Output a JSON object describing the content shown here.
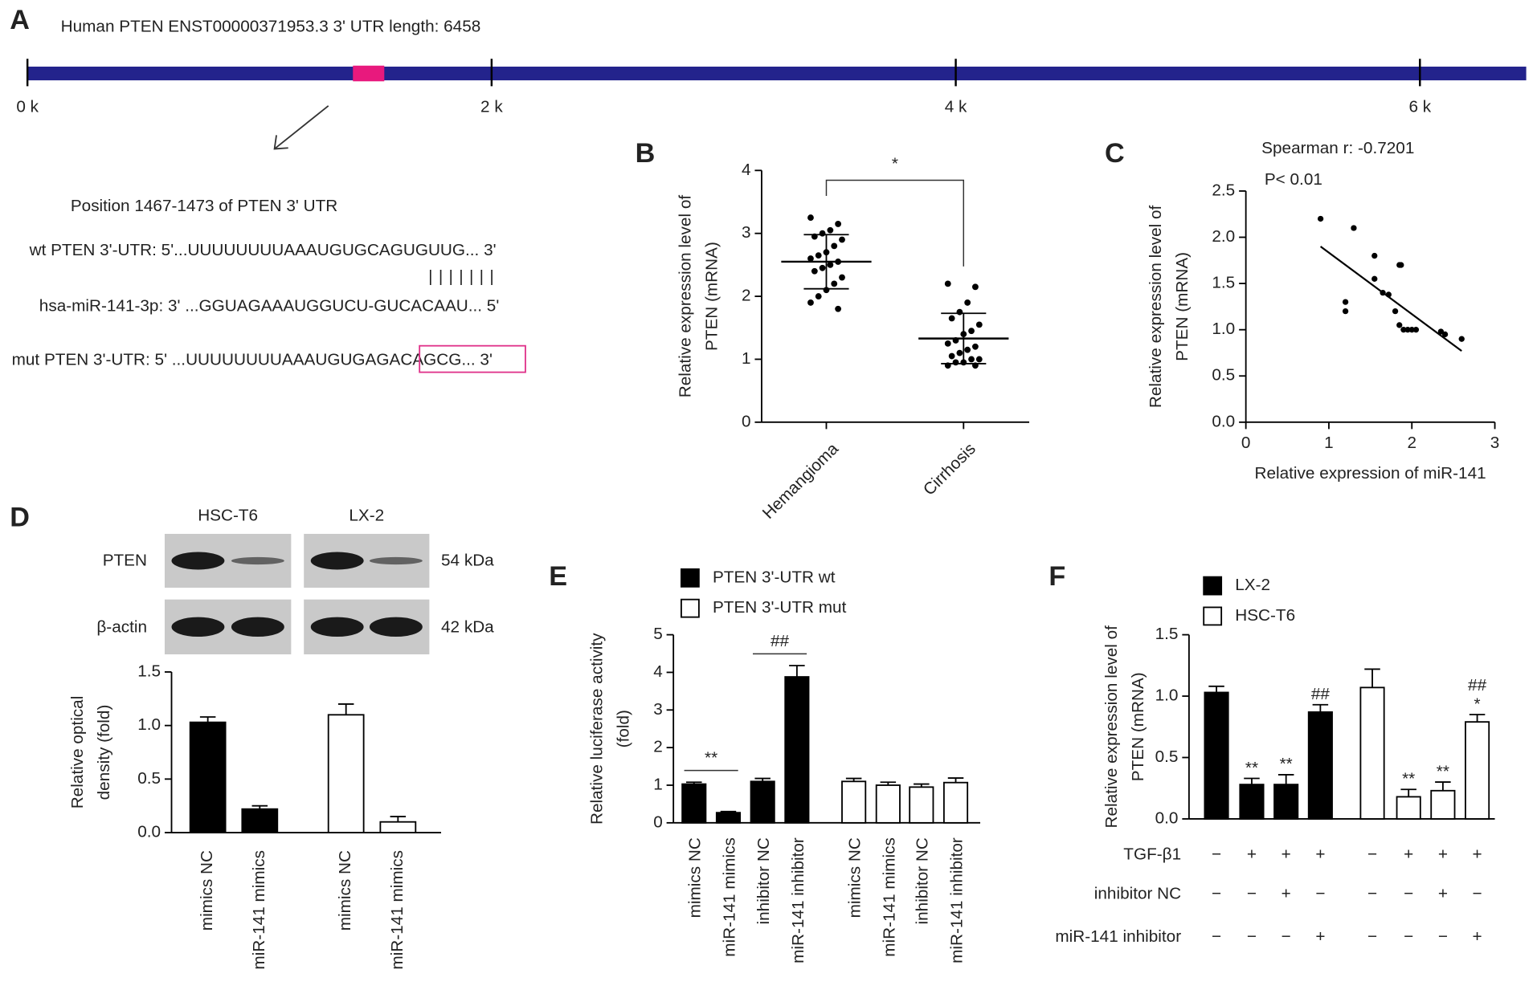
{
  "diagram": {
    "panel": "A",
    "header": "Human PTEN  ENST00000371953.3   3' UTR length: 6458",
    "xlim": [
      0,
      6458
    ],
    "xticks": [
      {
        "value": 0,
        "label": "0 k"
      },
      {
        "value": 2000,
        "label": "2 k"
      },
      {
        "value": 4000,
        "label": "4 k"
      },
      {
        "value": 6000,
        "label": "6 k"
      }
    ],
    "site": [
      1467,
      1473
    ],
    "position_label": "Position 1467-1473 of PTEN 3' UTR",
    "wt": "wt PTEN 3'-UTR: 5'...UUUUUUUUAAAUGUGCAGUGUUG... 3'",
    "mir": "hsa-miR-141-3p: 3' ...GGUAGAAAUGGUCU-GUCACAAU... 5'",
    "mut": "mut PTEN 3'-UTR: 5' ...UUUUUUUUAAAUGUGAGACAGCG... 3'"
  },
  "chart_data": [
    {
      "panel": "B",
      "type": "dotplot",
      "ylabel": [
        "Relative expression level of",
        "PTEN (mRNA)"
      ],
      "categories": [
        "Hemangioma",
        "Cirrhosis"
      ],
      "values": [
        [
          3.25,
          3.15,
          3.05,
          3.0,
          2.95,
          2.9,
          2.8,
          2.7,
          2.65,
          2.6,
          2.55,
          2.5,
          2.45,
          2.4,
          2.3,
          2.2,
          2.1,
          2.0,
          1.9,
          1.8
        ],
        [
          2.2,
          2.15,
          1.9,
          1.75,
          1.65,
          1.55,
          1.45,
          1.4,
          1.3,
          1.25,
          1.2,
          1.15,
          1.1,
          1.05,
          1.0,
          1.0,
          0.95,
          0.95,
          0.9,
          0.9
        ]
      ],
      "mean": [
        2.55,
        1.33
      ],
      "sd": [
        0.43,
        0.4
      ],
      "ylim": [
        0,
        4
      ],
      "yticks": [
        0,
        1,
        2,
        3,
        4
      ],
      "significance": "*"
    },
    {
      "panel": "C",
      "type": "scatter",
      "title": "Spearman r: -0.7201",
      "subtitle": "P< 0.01",
      "xlabel": "Relative expression of miR-141",
      "ylabel": [
        "Relative expression level of",
        "PTEN (mRNA)"
      ],
      "x": [
        0.9,
        1.3,
        1.2,
        1.2,
        1.55,
        1.55,
        1.65,
        1.72,
        1.85,
        1.87,
        1.8,
        1.85,
        1.9,
        1.95,
        2.0,
        2.05,
        2.35,
        2.4,
        2.6
      ],
      "y": [
        2.2,
        2.1,
        1.3,
        1.2,
        1.8,
        1.55,
        1.4,
        1.38,
        1.7,
        1.7,
        1.2,
        1.05,
        1.0,
        1.0,
        1.0,
        1.0,
        0.98,
        0.95,
        0.9
      ],
      "fit": {
        "x": [
          0.9,
          2.6
        ],
        "y": [
          1.9,
          0.77
        ]
      },
      "xlim": [
        0,
        3
      ],
      "xticks": [
        0,
        1,
        2,
        3
      ],
      "ylim": [
        0,
        2.5
      ],
      "yticks": [
        {
          "value": 0,
          "label": "0.0"
        },
        0.5,
        {
          "value": 1,
          "label": "1.0"
        },
        1.5,
        {
          "value": 2,
          "label": "2.0"
        },
        2.5
      ]
    },
    {
      "panel": "D",
      "type": "bar",
      "ylabel": [
        "Relative optical",
        "density (fold)"
      ],
      "blot": {
        "cell_lines": [
          "HSC-T6",
          "LX-2"
        ],
        "proteins": [
          "PTEN",
          "β-actin"
        ],
        "sizes": [
          "54 kDa",
          "42 kDa"
        ]
      },
      "categories": [
        "mimics NC",
        "miR-141 mimics",
        "mimics NC",
        "miR-141 mimics"
      ],
      "values": [
        1.03,
        0.22,
        1.1,
        0.1
      ],
      "errors": [
        0.05,
        0.03,
        0.1,
        0.05
      ],
      "colors": [
        "#000000",
        "#000000",
        "#ffffff",
        "#ffffff"
      ],
      "ylim": [
        0,
        1.5
      ],
      "yticks": [
        {
          "value": 0,
          "label": "0.0"
        },
        0.5,
        {
          "value": 1,
          "label": "1.0"
        },
        1.5
      ]
    },
    {
      "panel": "E",
      "type": "bar",
      "ylabel": [
        "Relative luciferase activity",
        "(fold)"
      ],
      "categories": [
        "mimics NC",
        "miR-141 mimics",
        "inhibitor NC",
        "miR-141 inhibitor"
      ],
      "series": [
        {
          "name": "PTEN 3'-UTR wt",
          "color": "#000000",
          "values": [
            1.03,
            0.27,
            1.1,
            3.88
          ],
          "errors": [
            0.05,
            0.03,
            0.08,
            0.3
          ]
        },
        {
          "name": "PTEN 3'-UTR mut",
          "color": "#ffffff",
          "values": [
            1.1,
            1.0,
            0.95,
            1.07
          ],
          "errors": [
            0.08,
            0.08,
            0.08,
            0.12
          ]
        }
      ],
      "annotations": [
        {
          "text": "**",
          "series": 0,
          "from": 0,
          "to": 1
        },
        {
          "text": "##",
          "series": 0,
          "from": 2,
          "to": 3
        }
      ],
      "ylim": [
        0,
        5
      ],
      "yticks": [
        0,
        1,
        2,
        3,
        4,
        5
      ]
    },
    {
      "panel": "F",
      "type": "bar",
      "ylabel": [
        "Relative expression level of",
        "PTEN (mRNA)"
      ],
      "series": [
        {
          "name": "LX-2",
          "color": "#000000",
          "values": [
            1.03,
            0.28,
            0.28,
            0.87
          ],
          "errors": [
            0.05,
            0.05,
            0.08,
            0.06
          ]
        },
        {
          "name": "HSC-T6",
          "color": "#ffffff",
          "values": [
            1.07,
            0.18,
            0.23,
            0.79
          ],
          "errors": [
            0.15,
            0.06,
            0.07,
            0.06
          ]
        }
      ],
      "annotations": [
        {
          "text": "**",
          "series": 0,
          "index": 1
        },
        {
          "text": "**",
          "series": 0,
          "index": 2
        },
        {
          "text": "##",
          "series": 0,
          "index": 3
        },
        {
          "text": "**",
          "series": 1,
          "index": 1
        },
        {
          "text": "**",
          "series": 1,
          "index": 2
        },
        {
          "text": "*",
          "series": 1,
          "index": 3
        },
        {
          "text": "##",
          "series": 1,
          "index": 3
        }
      ],
      "conditions": [
        {
          "name": "TGF-β1",
          "signs": [
            "−",
            "+",
            "+",
            "+",
            "−",
            "+",
            "+",
            "+"
          ]
        },
        {
          "name": "inhibitor NC",
          "signs": [
            "−",
            "−",
            "+",
            "−",
            "−",
            "−",
            "+",
            "−"
          ]
        },
        {
          "name": "miR-141 inhibitor",
          "signs": [
            "−",
            "−",
            "−",
            "+",
            "−",
            "−",
            "−",
            "+"
          ]
        }
      ],
      "ylim": [
        0,
        1.5
      ],
      "yticks": [
        {
          "value": 0,
          "label": "0.0"
        },
        0.5,
        {
          "value": 1,
          "label": "1.0"
        },
        1.5
      ]
    }
  ]
}
